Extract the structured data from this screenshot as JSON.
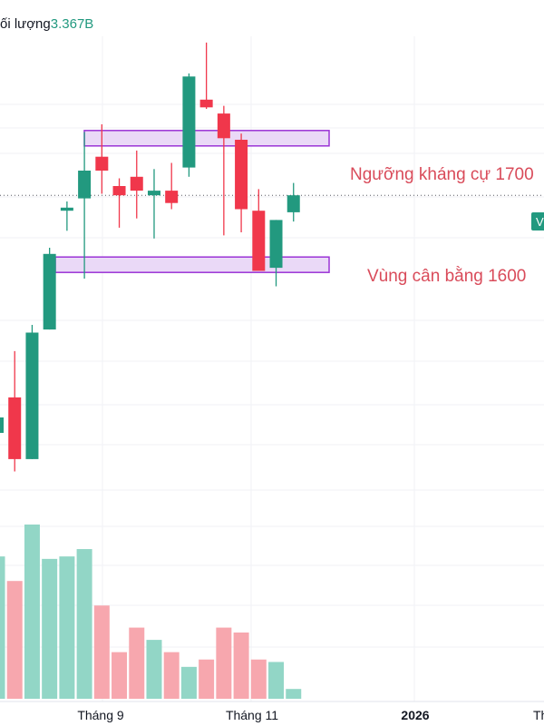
{
  "header": {
    "volume_label": "ối lượng",
    "volume_value": "3.367B"
  },
  "price_tag": "V",
  "colors": {
    "up": "#22997f",
    "down": "#f0374b",
    "vol_up": "#92d6c6",
    "vol_down": "#f7a7ae",
    "zone_fill": "#ead9f7",
    "zone_stroke": "#9b34d6",
    "annotation": "#d94b5a",
    "grid": "#f0f2f5",
    "axis_text": "#131722",
    "volume_value": "#22997f",
    "price_tag": "#22997f"
  },
  "chart_data": {
    "type": "candlestick",
    "candles": [
      {
        "o": 1510,
        "h": 1525,
        "l": 1495,
        "c": 1520
      },
      {
        "o": 1533,
        "h": 1563,
        "l": 1485,
        "c": 1493
      },
      {
        "o": 1493,
        "h": 1580,
        "l": 1493,
        "c": 1575
      },
      {
        "o": 1577,
        "h": 1630,
        "l": 1577,
        "c": 1626
      },
      {
        "o": 1654,
        "h": 1660,
        "l": 1641,
        "c": 1656
      },
      {
        "o": 1662,
        "h": 1705,
        "l": 1610,
        "c": 1680
      },
      {
        "o": 1689,
        "h": 1710,
        "l": 1665,
        "c": 1680
      },
      {
        "o": 1670,
        "h": 1675,
        "l": 1643,
        "c": 1664
      },
      {
        "o": 1676,
        "h": 1693,
        "l": 1649,
        "c": 1667
      },
      {
        "o": 1664,
        "h": 1681,
        "l": 1636,
        "c": 1667
      },
      {
        "o": 1667,
        "h": 1685,
        "l": 1655,
        "c": 1659
      },
      {
        "o": 1682,
        "h": 1743,
        "l": 1676,
        "c": 1741
      },
      {
        "o": 1726,
        "h": 1763,
        "l": 1720,
        "c": 1721
      },
      {
        "o": 1717,
        "h": 1722,
        "l": 1638,
        "c": 1701
      },
      {
        "o": 1700,
        "h": 1704,
        "l": 1640,
        "c": 1655
      },
      {
        "o": 1654,
        "h": 1668,
        "l": 1615,
        "c": 1615
      },
      {
        "o": 1617,
        "h": 1648,
        "l": 1605,
        "c": 1648
      },
      {
        "o": 1653,
        "h": 1672,
        "l": 1647,
        "c": 1664
      }
    ],
    "volume_relative": [
      0.58,
      0.48,
      0.71,
      0.57,
      0.58,
      0.61,
      0.38,
      0.19,
      0.29,
      0.24,
      0.19,
      0.13,
      0.16,
      0.29,
      0.27,
      0.16,
      0.15,
      0.04
    ],
    "zones": [
      {
        "label": "Ngưỡng kháng cự 1700",
        "from": 1696,
        "to": 1706
      },
      {
        "label": "Vùng cân bằng 1600",
        "from": 1614,
        "to": 1624
      }
    ],
    "reference_line": 1664,
    "x_labels": [
      "Tháng 9",
      "Tháng 11",
      "2026",
      "Th"
    ],
    "price_range": [
      1480,
      1766
    ]
  }
}
